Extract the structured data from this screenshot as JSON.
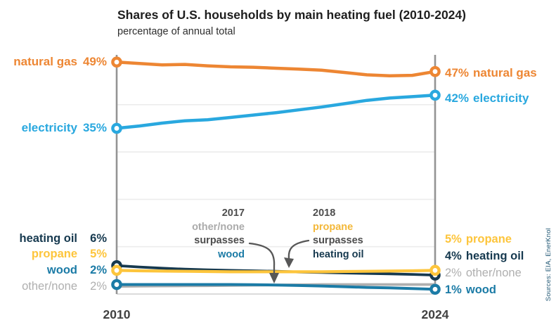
{
  "title": "Shares of U.S. households by main heating fuel (2010-2024)",
  "subtitle": "percentage of annual total",
  "source_note": "Sources: EIA, EnerKnol",
  "x_axis": {
    "left_tick": "2010",
    "right_tick": "2024"
  },
  "colors": {
    "natural_gas": "#ED8633",
    "electricity": "#29A8DF",
    "heating_oil": "#16394F",
    "propane": "#FDC53C",
    "wood": "#1B7BA6",
    "other_none": "#AFAFAF",
    "grid": "#ECECEC",
    "axis_vertical": "#949494",
    "axis_bottom": "#CFCFCF",
    "annotation_text": "#4D4D4D",
    "arrow": "#575757"
  },
  "labels": {
    "left": [
      {
        "name": "natural gas",
        "value": "49%"
      },
      {
        "name": "electricity",
        "value": "35%"
      },
      {
        "name": "heating oil",
        "value": "6%"
      },
      {
        "name": "propane",
        "value": "5%"
      },
      {
        "name": "wood",
        "value": "2%"
      },
      {
        "name": "other/none",
        "value": "2%"
      }
    ],
    "right": [
      {
        "value": "47%",
        "name": "natural gas"
      },
      {
        "value": "42%",
        "name": "electricity"
      },
      {
        "value": "5%",
        "name": "propane"
      },
      {
        "value": "4%",
        "name": "heating oil"
      },
      {
        "value": "2%",
        "name": "other/none"
      },
      {
        "value": "1%",
        "name": "wood"
      }
    ]
  },
  "annotations": [
    {
      "lines": [
        "2017",
        "other/none",
        "surpasses",
        "wood"
      ],
      "points_at_year": 2017
    },
    {
      "lines": [
        "2018",
        "propane",
        "surpasses",
        "heating oil"
      ],
      "points_at_year": 2018
    }
  ],
  "chart_data": {
    "type": "line",
    "title": "Shares of U.S. households by main heating fuel (2010-2024)",
    "subtitle": "percentage of annual total",
    "xlabel": "",
    "ylabel": "percentage of annual total",
    "x": [
      2010,
      2011,
      2012,
      2013,
      2014,
      2015,
      2016,
      2017,
      2018,
      2019,
      2020,
      2021,
      2022,
      2023,
      2024
    ],
    "x_tick_labels": [
      "2010",
      "2024"
    ],
    "ylim": [
      0,
      52
    ],
    "gridlines_pct": [
      10,
      20,
      30,
      40
    ],
    "grid": true,
    "legend_position": "inline-endpoint-labels",
    "series": [
      {
        "name": "natural gas",
        "color": "#ED8633",
        "endpoint_markers": true,
        "start_pct": 49,
        "end_pct": 47,
        "values": [
          49,
          48.7,
          48.4,
          48.5,
          48.2,
          48.0,
          47.9,
          47.7,
          47.5,
          47.3,
          46.8,
          46.3,
          46.1,
          46.2,
          47
        ]
      },
      {
        "name": "electricity",
        "color": "#29A8DF",
        "endpoint_markers": true,
        "start_pct": 35,
        "end_pct": 42,
        "values": [
          35,
          35.5,
          36.1,
          36.6,
          36.8,
          37.3,
          37.8,
          38.3,
          38.9,
          39.5,
          40.2,
          40.9,
          41.4,
          41.7,
          42
        ]
      },
      {
        "name": "heating oil",
        "color": "#16394F",
        "endpoint_markers": true,
        "start_pct": 6,
        "end_pct": 4,
        "values": [
          6,
          5.7,
          5.45,
          5.25,
          5.1,
          5.0,
          4.9,
          4.8,
          4.65,
          4.55,
          4.45,
          4.35,
          4.25,
          4.15,
          4
        ]
      },
      {
        "name": "propane",
        "color": "#FDC53C",
        "endpoint_markers": true,
        "start_pct": 5,
        "end_pct": 5,
        "values": [
          5,
          4.9,
          4.85,
          4.8,
          4.75,
          4.7,
          4.7,
          4.7,
          4.7,
          4.7,
          4.75,
          4.8,
          4.85,
          4.9,
          5
        ]
      },
      {
        "name": "wood",
        "color": "#1B7BA6",
        "endpoint_markers": true,
        "start_pct": 2,
        "end_pct": 1,
        "values": [
          2,
          2,
          2,
          2,
          2,
          2,
          1.97,
          1.9,
          1.8,
          1.7,
          1.55,
          1.4,
          1.3,
          1.15,
          1
        ]
      },
      {
        "name": "other/none",
        "color": "#AFAFAF",
        "endpoint_markers": false,
        "start_pct": 2,
        "end_pct": 2,
        "values": [
          1.6,
          1.65,
          1.7,
          1.72,
          1.75,
          1.8,
          1.85,
          1.9,
          1.95,
          2.0,
          2.0,
          2.0,
          2.0,
          2.0,
          2.0
        ]
      }
    ],
    "events": [
      {
        "year": 2017,
        "text": "other/none surpasses wood"
      },
      {
        "year": 2018,
        "text": "propane surpasses heating oil"
      }
    ]
  }
}
